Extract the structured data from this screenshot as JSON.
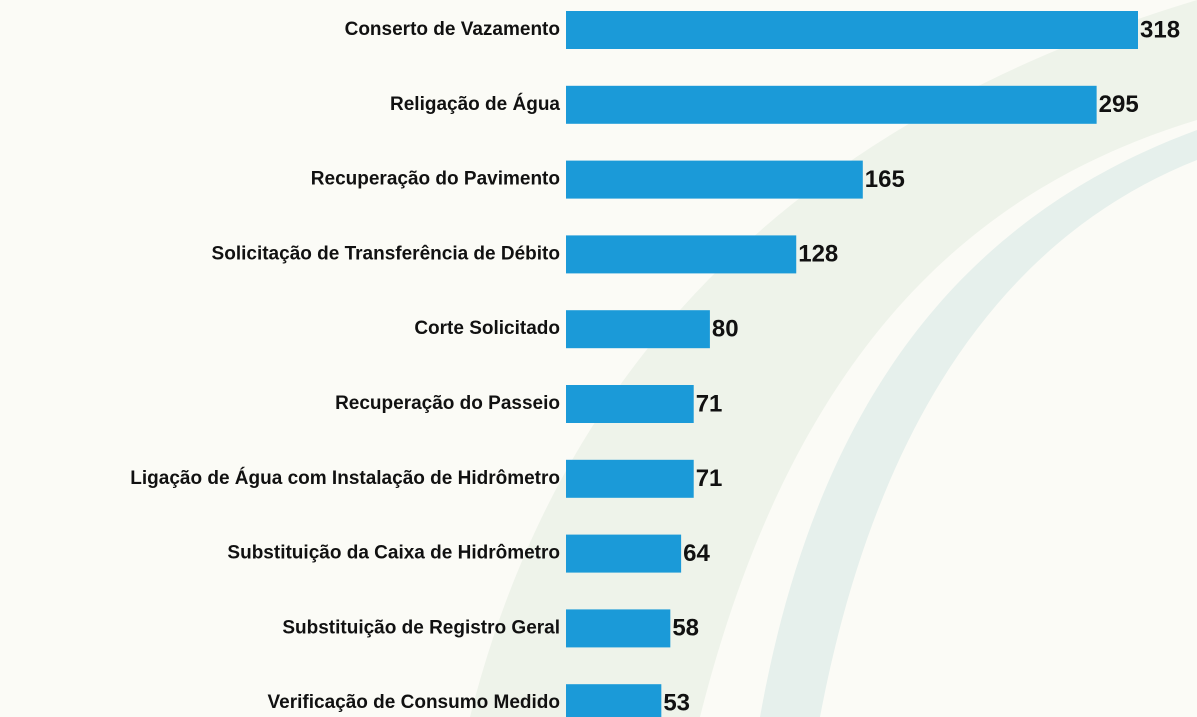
{
  "chart_data": {
    "type": "bar",
    "orientation": "horizontal",
    "categories": [
      "Conserto de Vazamento",
      "Religação de Água",
      "Recuperação do Pavimento",
      "Solicitação de Transferência de Débito",
      "Corte Solicitado",
      "Recuperação do Passeio",
      "Ligação de Água com Instalação de Hidrômetro",
      "Substituição da Caixa de Hidrômetro",
      "Substituição de Registro Geral",
      "Verificação de Consumo Medido"
    ],
    "values": [
      318,
      295,
      165,
      128,
      80,
      71,
      71,
      64,
      58,
      53
    ],
    "color": "#1b9ad8"
  }
}
